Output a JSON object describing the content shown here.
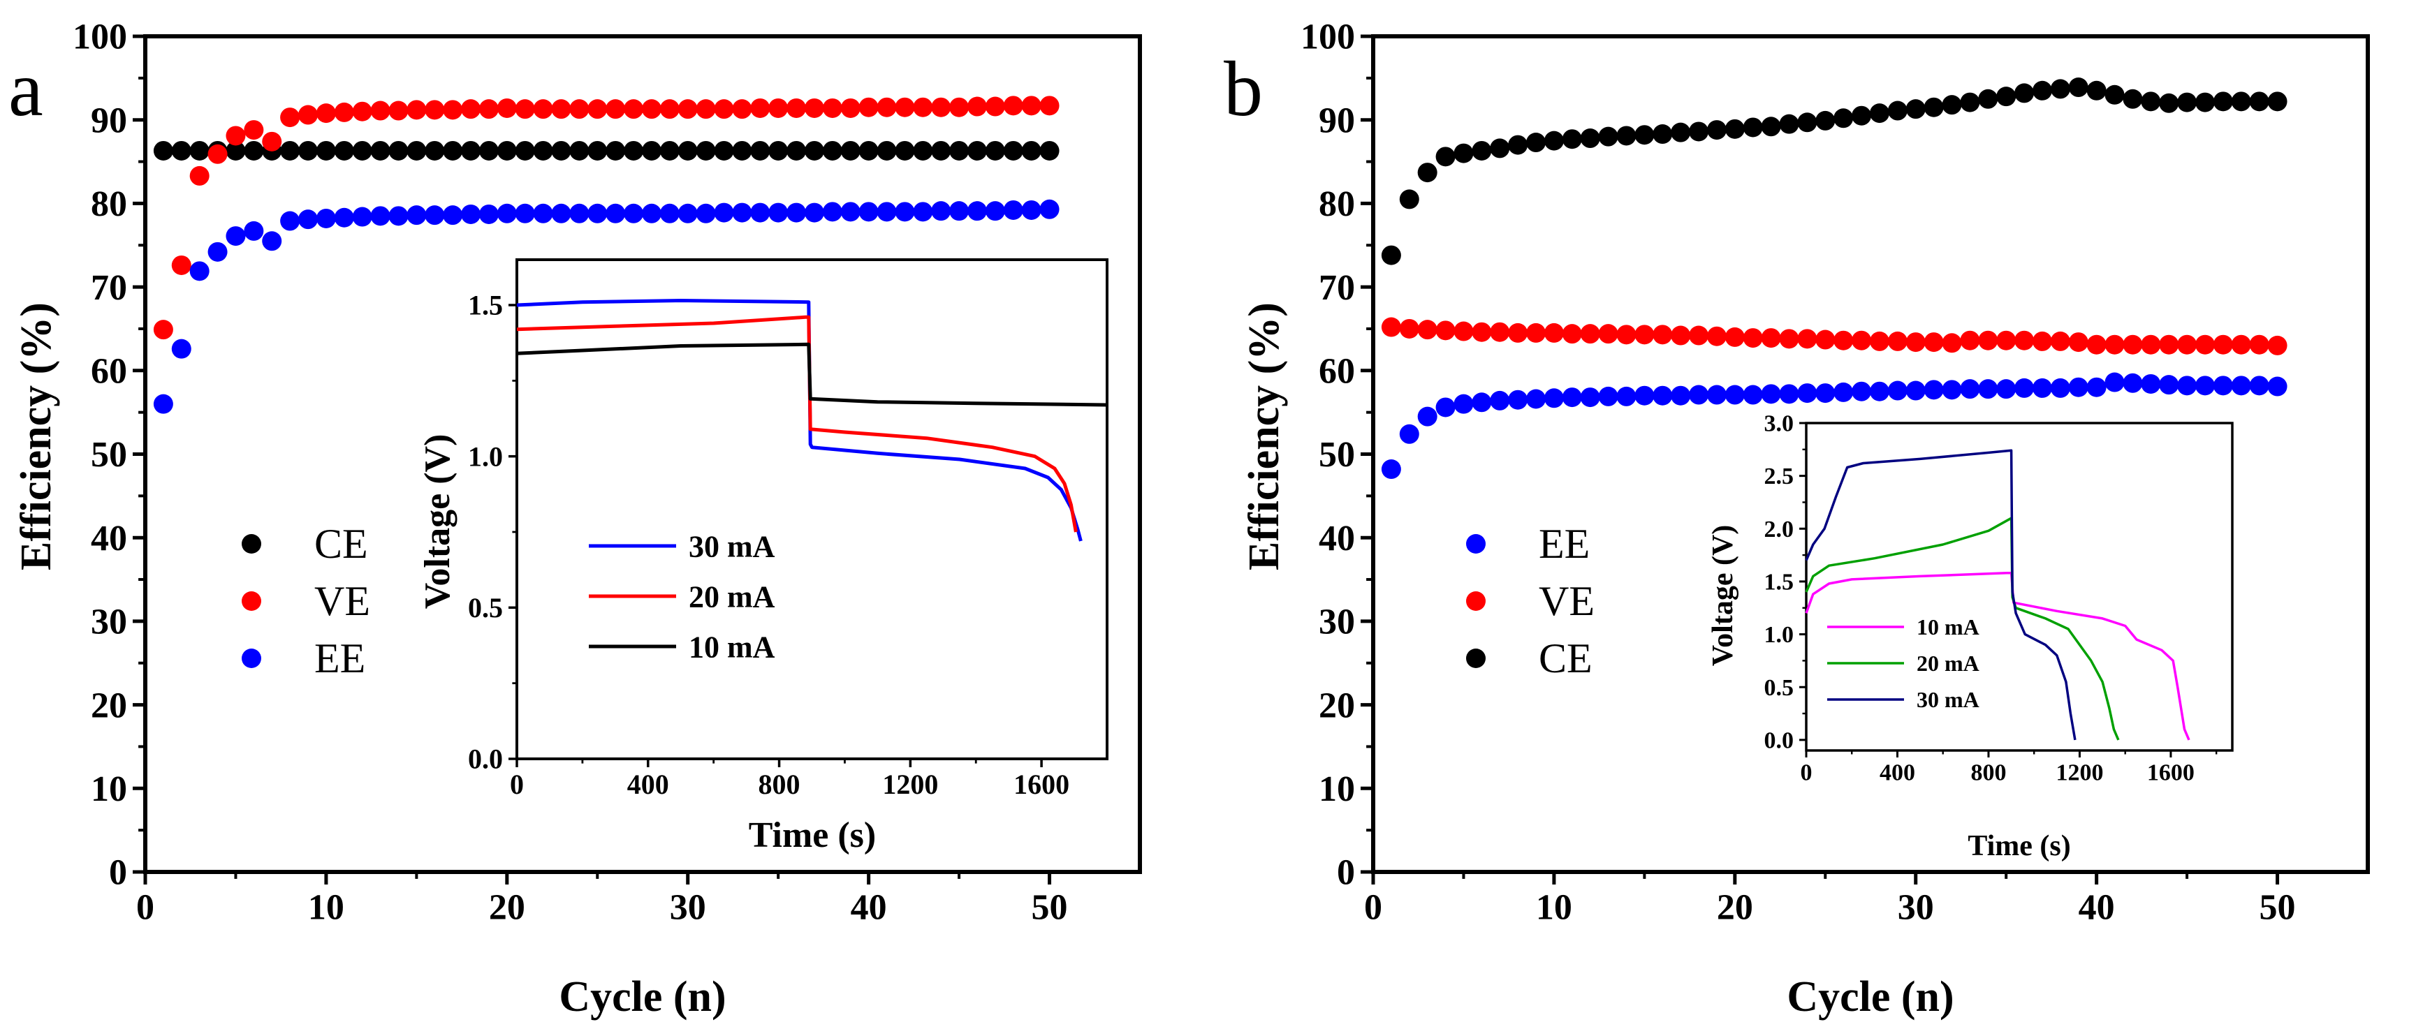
{
  "chart_data": [
    {
      "panel": "a",
      "type": "scatter",
      "xlabel": "Cycle (n)",
      "ylabel": "Efficiency (%)",
      "xlim": [
        0,
        55
      ],
      "ylim": [
        0,
        100
      ],
      "xticks": [
        "0",
        "10",
        "20",
        "30",
        "40",
        "50"
      ],
      "yticks": [
        "0",
        "10",
        "20",
        "30",
        "40",
        "50",
        "60",
        "70",
        "80",
        "90",
        "100"
      ],
      "legend_position": "middle-left",
      "series": [
        {
          "name": "CE",
          "color": "#000000",
          "values": [
            86.3,
            86.3,
            86.3,
            86.3,
            86.3,
            86.3,
            86.3,
            86.3,
            86.3,
            86.3,
            86.3,
            86.3,
            86.3,
            86.3,
            86.3,
            86.3,
            86.3,
            86.3,
            86.3,
            86.3,
            86.3,
            86.3,
            86.3,
            86.3,
            86.3,
            86.3,
            86.3,
            86.3,
            86.3,
            86.3,
            86.3,
            86.3,
            86.3,
            86.3,
            86.3,
            86.3,
            86.3,
            86.3,
            86.3,
            86.3,
            86.3,
            86.3,
            86.3,
            86.3,
            86.3,
            86.3,
            86.3,
            86.3,
            86.3,
            86.3
          ]
        },
        {
          "name": "VE",
          "color": "#ff0000",
          "values": [
            64.9,
            72.6,
            83.3,
            85.9,
            88.1,
            88.8,
            87.4,
            90.3,
            90.6,
            90.8,
            90.9,
            91.0,
            91.1,
            91.1,
            91.2,
            91.2,
            91.2,
            91.3,
            91.3,
            91.4,
            91.3,
            91.3,
            91.3,
            91.3,
            91.3,
            91.3,
            91.3,
            91.3,
            91.3,
            91.3,
            91.3,
            91.3,
            91.3,
            91.4,
            91.4,
            91.4,
            91.4,
            91.4,
            91.4,
            91.5,
            91.5,
            91.5,
            91.5,
            91.5,
            91.5,
            91.6,
            91.6,
            91.7,
            91.7,
            91.7
          ]
        },
        {
          "name": "EE",
          "color": "#0000ff",
          "values": [
            56.0,
            62.6,
            71.9,
            74.2,
            76.1,
            76.7,
            75.5,
            77.9,
            78.1,
            78.2,
            78.3,
            78.4,
            78.5,
            78.5,
            78.6,
            78.6,
            78.6,
            78.7,
            78.7,
            78.8,
            78.8,
            78.8,
            78.8,
            78.8,
            78.8,
            78.8,
            78.8,
            78.8,
            78.8,
            78.8,
            78.8,
            78.9,
            78.9,
            78.9,
            78.9,
            78.9,
            78.9,
            79.0,
            79.0,
            79.0,
            79.0,
            79.0,
            79.0,
            79.1,
            79.1,
            79.1,
            79.1,
            79.2,
            79.2,
            79.3
          ]
        }
      ],
      "inset": {
        "type": "line",
        "xlabel": "Time (s)",
        "ylabel": "Voltage (V)",
        "xlim": [
          0,
          1800
        ],
        "ylim": [
          0,
          1.65
        ],
        "xticks": [
          "0",
          "400",
          "800",
          "1200",
          "1600"
        ],
        "yticks": [
          "0.0",
          "0.5",
          "1.0",
          "1.5"
        ],
        "legend_position": "lower-left",
        "series": [
          {
            "name": "30 mA",
            "color": "#0000ff",
            "points": [
              [
                0,
                1.5
              ],
              [
                200,
                1.51
              ],
              [
                500,
                1.515
              ],
              [
                890,
                1.51
              ],
              [
                895,
                1.04
              ],
              [
                900,
                1.03
              ],
              [
                1100,
                1.01
              ],
              [
                1350,
                0.99
              ],
              [
                1550,
                0.96
              ],
              [
                1620,
                0.93
              ],
              [
                1660,
                0.89
              ],
              [
                1690,
                0.83
              ],
              [
                1710,
                0.76
              ],
              [
                1720,
                0.72
              ]
            ]
          },
          {
            "name": "20 mA",
            "color": "#ff0000",
            "points": [
              [
                0,
                1.42
              ],
              [
                300,
                1.43
              ],
              [
                600,
                1.44
              ],
              [
                880,
                1.46
              ],
              [
                890,
                1.46
              ],
              [
                895,
                1.09
              ],
              [
                1000,
                1.08
              ],
              [
                1250,
                1.06
              ],
              [
                1450,
                1.03
              ],
              [
                1580,
                1.0
              ],
              [
                1640,
                0.96
              ],
              [
                1670,
                0.91
              ],
              [
                1690,
                0.84
              ],
              [
                1705,
                0.75
              ]
            ]
          },
          {
            "name": "10 mA",
            "color": "#000000",
            "points": [
              [
                0,
                1.34
              ],
              [
                200,
                1.35
              ],
              [
                500,
                1.365
              ],
              [
                890,
                1.37
              ],
              [
                895,
                1.19
              ],
              [
                1100,
                1.18
              ],
              [
                1400,
                1.175
              ],
              [
                1800,
                1.17
              ]
            ]
          }
        ]
      }
    },
    {
      "panel": "b",
      "type": "scatter",
      "xlabel": "Cycle (n)",
      "ylabel": "Efficiency (%)",
      "xlim": [
        0,
        55
      ],
      "ylim": [
        0,
        100
      ],
      "xticks": [
        "0",
        "10",
        "20",
        "30",
        "40",
        "50"
      ],
      "yticks": [
        "0",
        "10",
        "20",
        "30",
        "40",
        "50",
        "60",
        "70",
        "80",
        "90",
        "100"
      ],
      "legend_position": "middle-left",
      "series": [
        {
          "name": "EE",
          "color": "#0000ff",
          "values": [
            48.2,
            52.4,
            54.5,
            55.6,
            56.0,
            56.2,
            56.4,
            56.5,
            56.6,
            56.7,
            56.8,
            56.8,
            56.9,
            56.9,
            57.0,
            57.0,
            57.0,
            57.1,
            57.1,
            57.1,
            57.1,
            57.2,
            57.2,
            57.3,
            57.3,
            57.4,
            57.5,
            57.5,
            57.6,
            57.6,
            57.7,
            57.7,
            57.8,
            57.8,
            57.8,
            57.9,
            57.9,
            57.9,
            58.0,
            58.0,
            58.6,
            58.5,
            58.4,
            58.3,
            58.2,
            58.2,
            58.2,
            58.2,
            58.2,
            58.1
          ]
        },
        {
          "name": "VE",
          "color": "#ff0000",
          "values": [
            65.2,
            65.0,
            64.9,
            64.8,
            64.7,
            64.6,
            64.6,
            64.5,
            64.5,
            64.5,
            64.4,
            64.4,
            64.4,
            64.3,
            64.3,
            64.3,
            64.2,
            64.2,
            64.1,
            64.0,
            63.9,
            63.9,
            63.8,
            63.8,
            63.7,
            63.6,
            63.6,
            63.5,
            63.5,
            63.4,
            63.4,
            63.3,
            63.6,
            63.6,
            63.6,
            63.6,
            63.5,
            63.5,
            63.4,
            63.1,
            63.1,
            63.1,
            63.1,
            63.1,
            63.1,
            63.1,
            63.1,
            63.1,
            63.1,
            63.0
          ]
        },
        {
          "name": "CE",
          "color": "#000000",
          "values": [
            73.8,
            80.5,
            83.7,
            85.6,
            86.0,
            86.3,
            86.6,
            87.0,
            87.3,
            87.5,
            87.7,
            87.8,
            88.0,
            88.1,
            88.2,
            88.3,
            88.5,
            88.6,
            88.8,
            88.9,
            89.1,
            89.2,
            89.5,
            89.7,
            89.9,
            90.2,
            90.5,
            90.8,
            91.1,
            91.3,
            91.5,
            91.8,
            92.1,
            92.5,
            92.8,
            93.2,
            93.5,
            93.7,
            93.9,
            93.5,
            93.0,
            92.5,
            92.2,
            92.0,
            92.1,
            92.1,
            92.2,
            92.2,
            92.2,
            92.2
          ]
        }
      ],
      "inset": {
        "type": "line",
        "xlabel": "Time (s)",
        "ylabel": "Voltage (V)",
        "xlim": [
          0,
          1870
        ],
        "ylim": [
          -0.1,
          3.0
        ],
        "xticks": [
          "0",
          "400",
          "800",
          "1200",
          "1600"
        ],
        "yticks": [
          "0.0",
          "0.5",
          "1.0",
          "1.5",
          "2.0",
          "2.5",
          "3.0"
        ],
        "legend_position": "lower-left",
        "series": [
          {
            "name": "10 mA",
            "color": "#ff00ff",
            "points": [
              [
                0,
                1.2
              ],
              [
                30,
                1.38
              ],
              [
                100,
                1.48
              ],
              [
                200,
                1.52
              ],
              [
                500,
                1.55
              ],
              [
                880,
                1.58
              ],
              [
                900,
                1.58
              ],
              [
                910,
                1.3
              ],
              [
                1100,
                1.22
              ],
              [
                1300,
                1.15
              ],
              [
                1400,
                1.08
              ],
              [
                1450,
                0.95
              ],
              [
                1560,
                0.85
              ],
              [
                1610,
                0.75
              ],
              [
                1630,
                0.5
              ],
              [
                1660,
                0.1
              ],
              [
                1680,
                0.0
              ]
            ]
          },
          {
            "name": "20 mA",
            "color": "#00a000",
            "points": [
              [
                0,
                1.4
              ],
              [
                30,
                1.55
              ],
              [
                100,
                1.65
              ],
              [
                300,
                1.72
              ],
              [
                600,
                1.85
              ],
              [
                800,
                1.98
              ],
              [
                900,
                2.1
              ],
              [
                905,
                1.35
              ],
              [
                920,
                1.25
              ],
              [
                1050,
                1.15
              ],
              [
                1150,
                1.05
              ],
              [
                1250,
                0.75
              ],
              [
                1300,
                0.55
              ],
              [
                1330,
                0.3
              ],
              [
                1350,
                0.1
              ],
              [
                1370,
                0.0
              ]
            ]
          },
          {
            "name": "30 mA",
            "color": "#000080",
            "points": [
              [
                0,
                1.7
              ],
              [
                30,
                1.85
              ],
              [
                80,
                2.0
              ],
              [
                130,
                2.3
              ],
              [
                180,
                2.58
              ],
              [
                250,
                2.62
              ],
              [
                500,
                2.66
              ],
              [
                800,
                2.72
              ],
              [
                900,
                2.74
              ],
              [
                905,
                1.4
              ],
              [
                920,
                1.2
              ],
              [
                960,
                1.0
              ],
              [
                1050,
                0.9
              ],
              [
                1100,
                0.8
              ],
              [
                1140,
                0.55
              ],
              [
                1160,
                0.25
              ],
              [
                1180,
                0.0
              ]
            ]
          }
        ]
      }
    }
  ]
}
